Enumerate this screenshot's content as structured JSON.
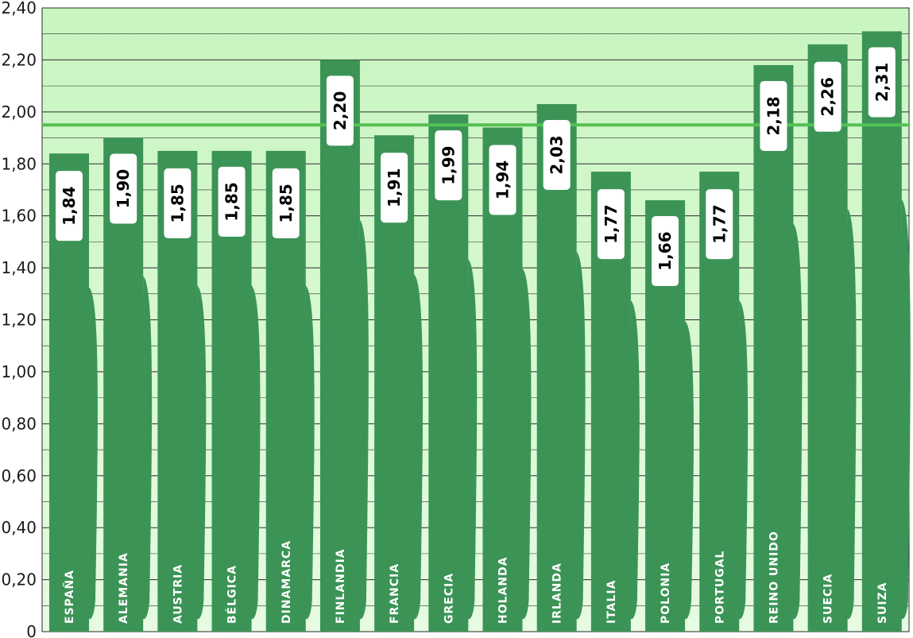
{
  "chart_data": {
    "type": "bar",
    "title": "",
    "xlabel": "",
    "ylabel": "",
    "categories": [
      "ESPAÑA",
      "ALEMANIA",
      "AUSTRIA",
      "BÉLGICA",
      "DINAMARCA",
      "FINLANDIA",
      "FRANCIA",
      "GRECIA",
      "HOLANDA",
      "IRLANDA",
      "ITALIA",
      "POLONIA",
      "PORTUGAL",
      "REINO UNIDO",
      "SUECIA",
      "SUIZA"
    ],
    "values": [
      1.84,
      1.9,
      1.85,
      1.85,
      1.85,
      2.2,
      1.91,
      1.99,
      1.94,
      2.03,
      1.77,
      1.66,
      1.77,
      2.18,
      2.26,
      2.31
    ],
    "value_labels": [
      "1,84",
      "1,90",
      "1,85",
      "1,85",
      "1,85",
      "2,20",
      "1,91",
      "1,99",
      "1,94",
      "2,03",
      "1,77",
      "1,66",
      "1,77",
      "2,18",
      "2,26",
      "2,31"
    ],
    "yticks": [
      0,
      0.2,
      0.4,
      0.6,
      0.8,
      1.0,
      1.2,
      1.4,
      1.6,
      1.8,
      2.0,
      2.2,
      2.4
    ],
    "ytick_labels": [
      "0",
      "0,20",
      "0,40",
      "0,60",
      "0,80",
      "1,00",
      "1,20",
      "1,40",
      "1,60",
      "1,80",
      "2,00",
      "2,20",
      "2,40"
    ],
    "ylim": [
      0,
      2.4
    ],
    "reference_line": 1.95,
    "grid": true,
    "legend": "none",
    "colors": {
      "bar": "#3b9456",
      "plot_background_top": "#c8f5c0",
      "plot_background_bottom": "#e6fbe2",
      "reference_line": "#55c055",
      "gridline": "#2a2a2a"
    }
  }
}
